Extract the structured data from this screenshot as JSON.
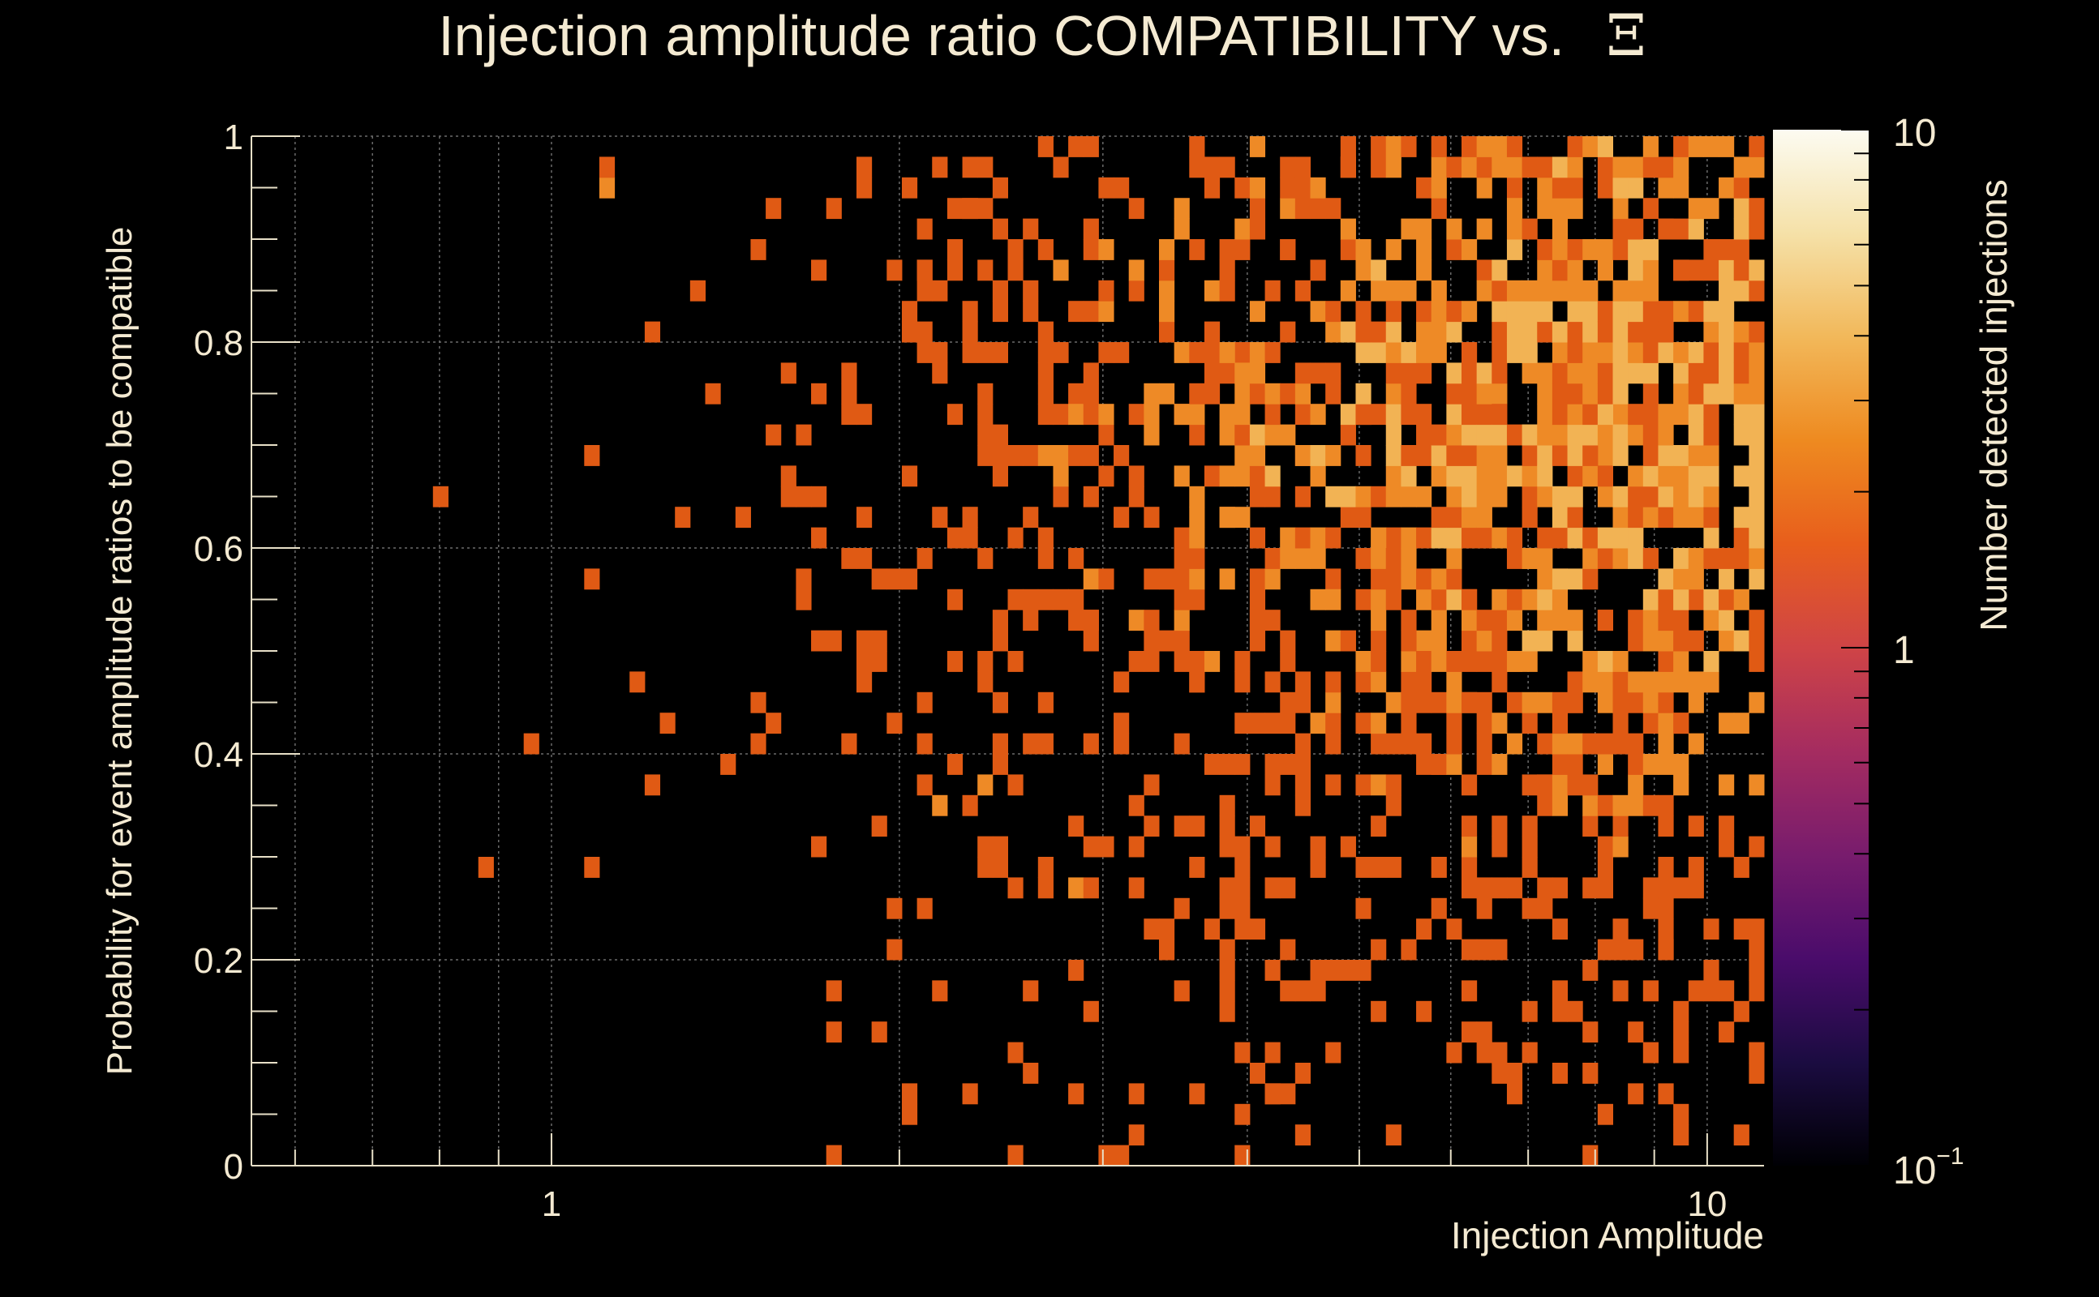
{
  "chart_data": {
    "type": "heatmap",
    "title": "Injection amplitude ratio COMPATIBILITY vs.",
    "title_symbol": "Ξ",
    "xlabel": "Injection Amplitude",
    "ylabel": "Probability for event amplitude ratios to be compatible",
    "x_scale": "log",
    "xlim": [
      0.55,
      11.2
    ],
    "ylim": [
      0,
      1
    ],
    "x_ticks": [
      {
        "value": 1,
        "label": "1"
      },
      {
        "value": 10,
        "label": "10"
      }
    ],
    "y_ticks": [
      {
        "value": 0,
        "label": "0"
      },
      {
        "value": 0.2,
        "label": "0.2"
      },
      {
        "value": 0.4,
        "label": "0.4"
      },
      {
        "value": 0.6,
        "label": "0.6"
      },
      {
        "value": 0.8,
        "label": "0.8"
      },
      {
        "value": 1,
        "label": "1"
      }
    ],
    "grid": true,
    "binning": {
      "x_bins": 100,
      "y_bins": 50
    },
    "colorbar": {
      "label": "Number detected injections",
      "scale": "log",
      "range": [
        0.1,
        10
      ],
      "tick_labels": [
        "10",
        "1",
        "10"
      ],
      "tick_exponent": "−1",
      "colormap": [
        "#000004",
        "#1b0c41",
        "#4a0c6b",
        "#781c6d",
        "#a52c60",
        "#cf4446",
        "#e85e1c",
        "#ee8a20",
        "#f2b85a",
        "#f5e1a8",
        "#fcfbf1"
      ]
    },
    "points": [
      [
        0.8,
        0.64,
        1
      ],
      [
        0.88,
        0.29,
        1
      ],
      [
        0.95,
        0.41,
        1
      ],
      [
        1.07,
        0.29,
        1
      ],
      [
        1.07,
        0.57,
        1
      ],
      [
        1.07,
        0.68,
        1
      ],
      [
        1.12,
        0.94,
        2
      ],
      [
        1.12,
        0.97,
        1
      ],
      [
        1.19,
        0.47,
        1
      ],
      [
        1.22,
        0.37,
        1
      ],
      [
        1.22,
        0.81,
        1
      ],
      [
        1.27,
        0.43,
        1
      ],
      [
        1.3,
        0.63,
        1
      ],
      [
        1.33,
        0.84,
        1
      ],
      [
        1.36,
        0.75,
        1
      ],
      [
        1.4,
        0.38,
        1
      ],
      [
        1.45,
        0.63,
        1
      ],
      [
        1.5,
        0.45,
        1
      ],
      [
        1.52,
        0.4,
        1
      ],
      [
        1.56,
        0.92,
        1
      ],
      [
        1.58,
        0.77,
        1
      ],
      [
        1.62,
        0.66,
        1
      ],
      [
        1.65,
        0.54,
        1
      ],
      [
        1.7,
        0.6,
        1
      ],
      [
        1.72,
        0.3,
        1
      ],
      [
        1.75,
        0.16,
        1
      ],
      [
        1.78,
        0.14,
        1
      ],
      [
        1.82,
        0.4,
        1
      ],
      [
        1.85,
        0.72,
        1
      ],
      [
        1.88,
        0.96,
        1
      ],
      [
        1.92,
        0.58,
        1
      ],
      [
        1.95,
        0.5,
        1
      ],
      [
        2.0,
        0.42,
        1
      ],
      [
        2.05,
        0.67,
        1
      ],
      [
        2.08,
        0.87,
        1
      ],
      [
        2.12,
        0.25,
        1
      ],
      [
        2.15,
        0.34,
        2
      ],
      [
        2.18,
        0.79,
        1
      ],
      [
        2.2,
        0.18,
        1
      ],
      [
        2.25,
        0.6,
        1
      ],
      [
        2.3,
        0.93,
        1
      ],
      [
        2.35,
        0.48,
        1
      ],
      [
        2.4,
        0.36,
        2
      ],
      [
        2.45,
        0.7,
        1
      ],
      [
        2.5,
        0.28,
        1
      ],
      [
        2.55,
        0.55,
        1
      ],
      [
        2.6,
        0.82,
        1
      ],
      [
        2.65,
        0.45,
        1
      ],
      [
        2.7,
        0.98,
        1
      ],
      [
        2.75,
        0.64,
        1
      ],
      [
        2.8,
        0.27,
        2
      ],
      [
        2.85,
        0.74,
        1
      ],
      [
        2.9,
        0.52,
        1
      ],
      [
        2.95,
        0.9,
        1
      ],
      [
        3.0,
        0.3,
        1
      ],
      [
        3.05,
        0.66,
        1
      ],
      [
        3.1,
        0.4,
        1
      ],
      [
        3.2,
        0.85,
        1
      ],
      [
        3.3,
        0.58,
        1
      ],
      [
        3.4,
        0.24,
        1
      ],
      [
        3.5,
        0.72,
        1
      ],
      [
        3.6,
        0.46,
        1
      ],
      [
        3.7,
        0.95,
        1
      ],
      [
        3.8,
        0.62,
        2
      ],
      [
        3.9,
        0.35,
        1
      ],
      [
        4.0,
        0.78,
        1
      ],
      [
        4.1,
        0.53,
        1
      ],
      [
        4.2,
        0.07,
        1
      ],
      [
        4.3,
        0.88,
        1
      ],
      [
        4.4,
        0.42,
        1
      ],
      [
        4.5,
        0.69,
        1
      ],
      [
        4.6,
        0.29,
        1
      ],
      [
        4.7,
        0.81,
        2
      ],
      [
        4.8,
        0.56,
        1
      ],
      [
        4.9,
        0.97,
        1
      ],
      [
        5.0,
        0.47,
        1
      ],
      [
        5.1,
        0.72,
        1
      ],
      [
        5.2,
        0.33,
        1
      ],
      [
        5.3,
        0.84,
        2
      ],
      [
        5.4,
        0.6,
        1
      ],
      [
        5.5,
        0.21,
        1
      ],
      [
        5.6,
        0.76,
        1
      ],
      [
        5.7,
        0.51,
        2
      ],
      [
        5.8,
        0.92,
        1
      ],
      [
        5.9,
        0.38,
        1
      ],
      [
        6.0,
        0.67,
        2
      ],
      [
        6.1,
        0.8,
        2
      ],
      [
        6.2,
        0.55,
        1
      ],
      [
        6.3,
        0.44,
        2
      ],
      [
        6.4,
        0.87,
        1
      ],
      [
        6.5,
        0.63,
        2
      ],
      [
        6.6,
        0.27,
        1
      ],
      [
        6.7,
        0.74,
        2
      ],
      [
        6.8,
        0.49,
        1
      ],
      [
        6.9,
        0.94,
        1
      ],
      [
        7.0,
        0.59,
        2
      ],
      [
        7.1,
        0.7,
        2
      ],
      [
        7.2,
        0.36,
        1
      ],
      [
        7.3,
        0.82,
        2
      ],
      [
        7.4,
        0.18,
        1
      ],
      [
        7.5,
        0.57,
        1
      ],
      [
        7.6,
        0.65,
        2
      ],
      [
        7.7,
        0.89,
        1
      ],
      [
        7.8,
        0.45,
        1
      ],
      [
        7.9,
        0.77,
        2
      ],
      [
        8.0,
        0.12,
        1
      ],
      [
        8.1,
        0.68,
        2
      ],
      [
        8.2,
        0.53,
        1
      ],
      [
        8.3,
        0.84,
        1
      ],
      [
        8.4,
        0.31,
        1
      ],
      [
        8.5,
        0.72,
        2
      ],
      [
        8.6,
        0.61,
        1
      ],
      [
        8.7,
        0.4,
        1
      ],
      [
        8.8,
        0.79,
        2
      ],
      [
        8.9,
        0.1,
        1
      ],
      [
        9.0,
        0.66,
        2
      ],
      [
        9.1,
        0.5,
        1
      ],
      [
        9.2,
        0.91,
        1
      ],
      [
        9.3,
        0.58,
        1
      ],
      [
        9.4,
        0.74,
        2
      ],
      [
        9.5,
        0.43,
        1
      ],
      [
        9.6,
        0.86,
        1
      ],
      [
        9.7,
        0.63,
        2
      ],
      [
        9.8,
        0.55,
        1
      ],
      [
        9.9,
        0.7,
        1
      ],
      [
        10.0,
        0.47,
        1
      ],
      [
        4.45,
        0.17,
        1
      ],
      [
        5.15,
        0.2,
        1
      ],
      [
        6.65,
        0.1,
        1
      ],
      [
        8.55,
        0.06,
        1
      ],
      [
        9.25,
        0.21,
        1
      ],
      [
        3.25,
        0.07,
        1
      ],
      [
        2.85,
        0.07,
        1
      ]
    ]
  }
}
